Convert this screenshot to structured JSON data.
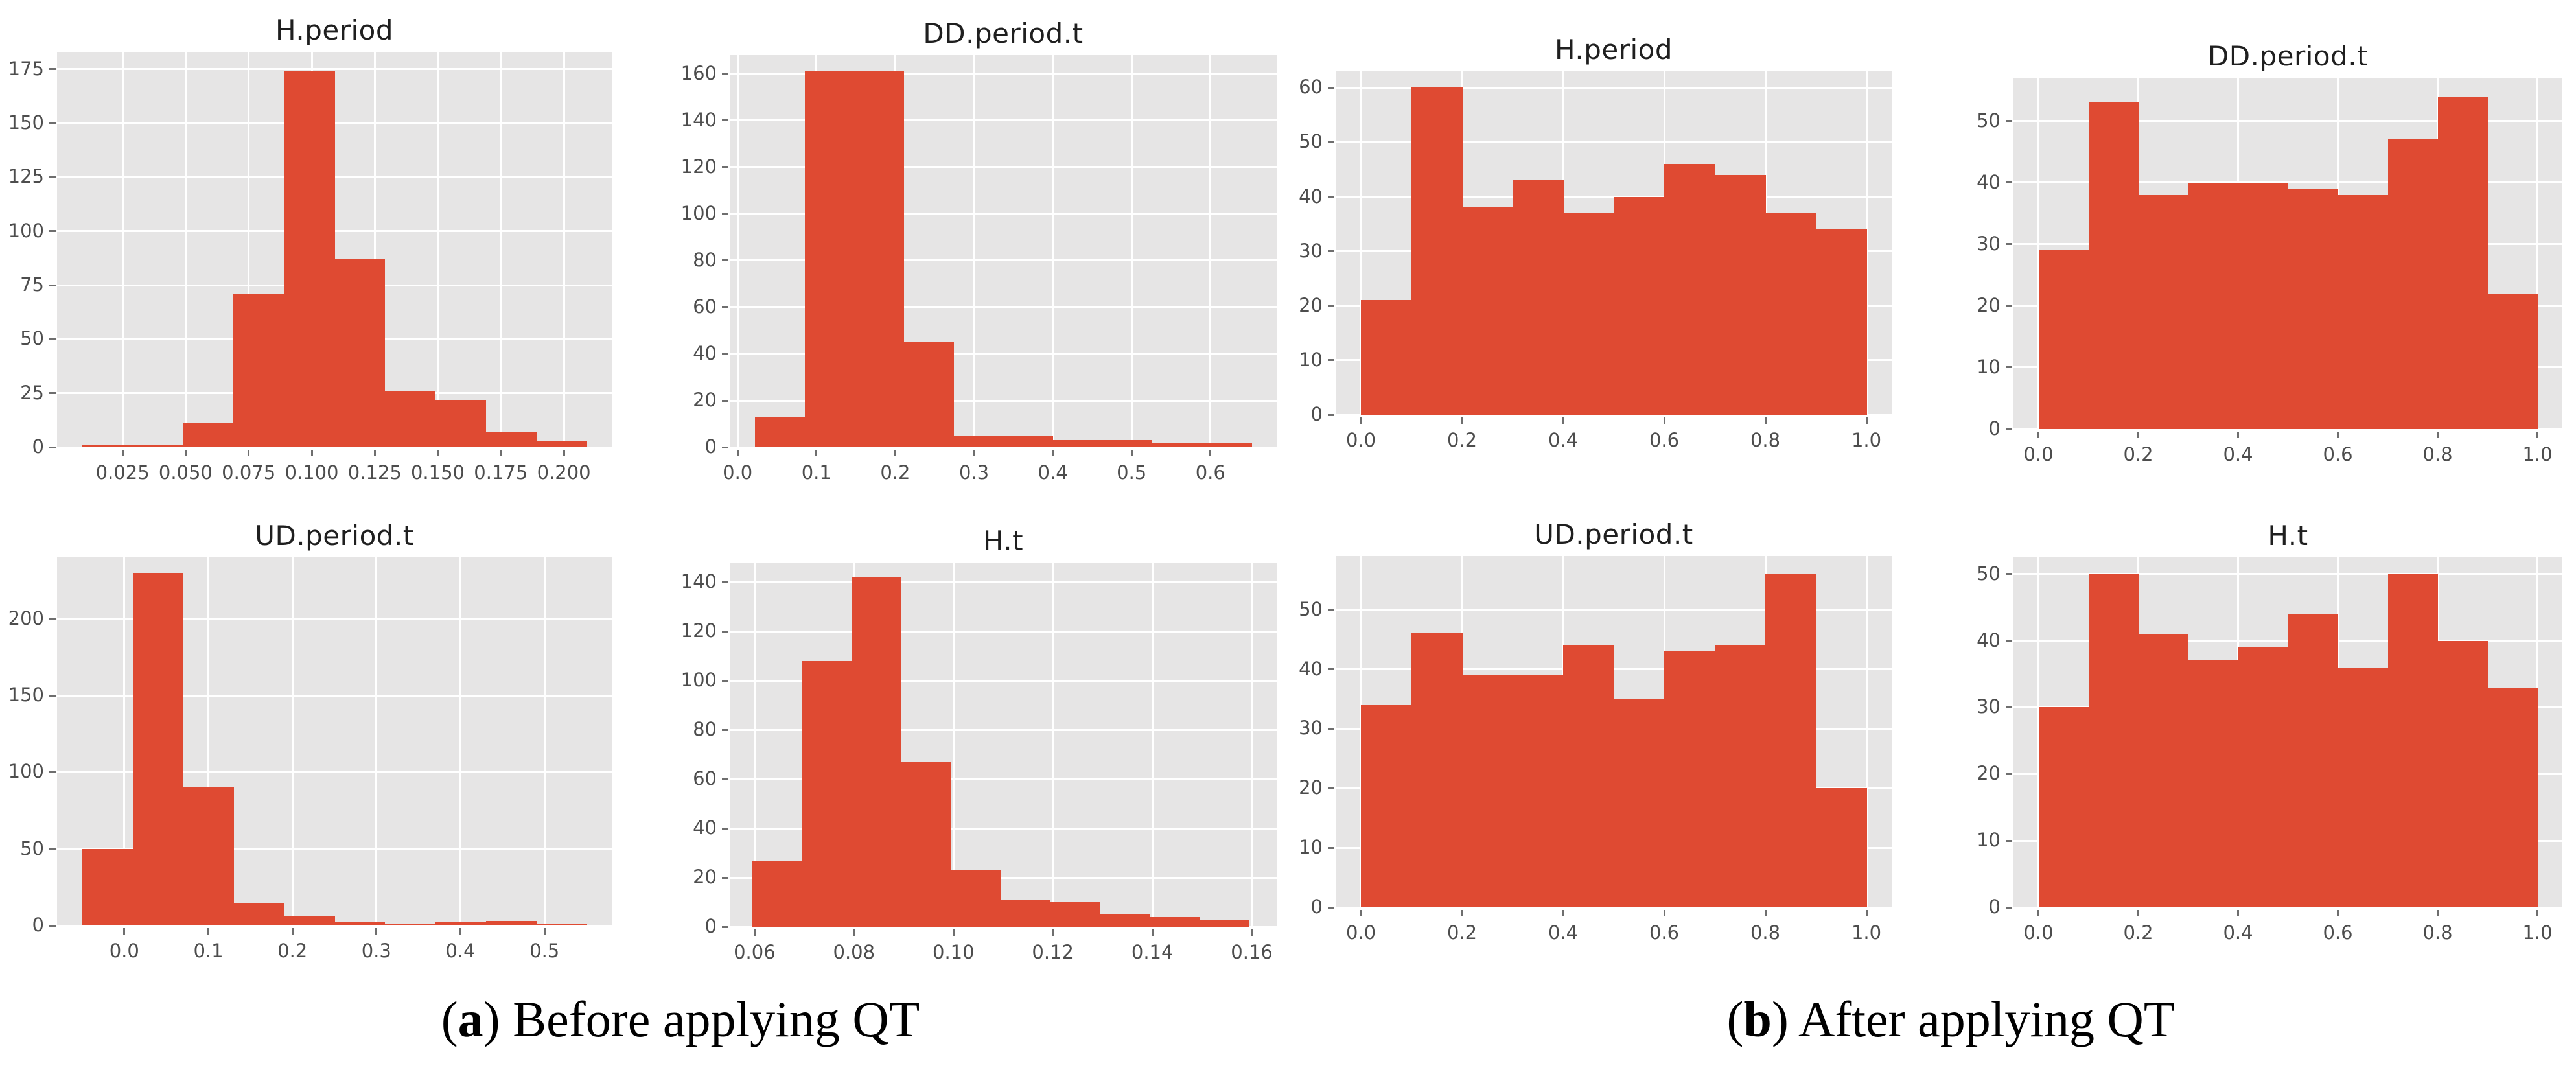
{
  "figure": {
    "bar_color": "#DF4A32",
    "plot_bg_color": "#E6E5E5",
    "grid_color": "#FFFFFF",
    "captions": {
      "a": {
        "open": "(",
        "letter": "a",
        "close": ") ",
        "text": "Before applying QT"
      },
      "b": {
        "open": "(",
        "letter": "b",
        "close": ") ",
        "text": "After applying QT"
      }
    }
  },
  "chart_data": [
    {
      "type": "histogram",
      "panel": "a",
      "title": "H.period",
      "bin_edges": [
        0.009,
        0.029,
        0.049,
        0.069,
        0.089,
        0.109,
        0.129,
        0.149,
        0.169,
        0.189,
        0.209
      ],
      "counts": [
        1,
        1,
        11,
        71,
        174,
        87,
        26,
        22,
        7,
        3
      ],
      "xlim": [
        -0.001,
        0.219
      ],
      "ylim": [
        0,
        183
      ],
      "x_tick_values": [
        0.025,
        0.05,
        0.075,
        0.1,
        0.125,
        0.15,
        0.175,
        0.2
      ],
      "x_tick_labels": [
        "0.025",
        "0.050",
        "0.075",
        "0.100",
        "0.125",
        "0.150",
        "0.175",
        "0.200"
      ],
      "y_tick_values": [
        0,
        25,
        50,
        75,
        100,
        125,
        150,
        175
      ],
      "y_tick_labels": [
        "0",
        "25",
        "50",
        "75",
        "100",
        "125",
        "150",
        "175"
      ]
    },
    {
      "type": "histogram",
      "panel": "a",
      "title": "DD.period.t",
      "bin_edges": [
        0.022,
        0.085,
        0.148,
        0.211,
        0.274,
        0.337,
        0.4,
        0.463,
        0.526,
        0.589,
        0.652
      ],
      "counts": [
        13,
        161,
        161,
        45,
        5,
        5,
        3,
        3,
        2,
        2
      ],
      "xlim": [
        -0.01,
        0.684
      ],
      "ylim": [
        0,
        168
      ],
      "x_tick_values": [
        0.0,
        0.1,
        0.2,
        0.3,
        0.4,
        0.5,
        0.6
      ],
      "x_tick_labels": [
        "0.0",
        "0.1",
        "0.2",
        "0.3",
        "0.4",
        "0.5",
        "0.6"
      ],
      "y_tick_values": [
        0,
        20,
        40,
        60,
        80,
        100,
        120,
        140,
        160
      ],
      "y_tick_labels": [
        "0",
        "20",
        "40",
        "60",
        "80",
        "100",
        "120",
        "140",
        "160"
      ]
    },
    {
      "type": "histogram",
      "panel": "b",
      "title": "H.period",
      "bin_edges": [
        0.0,
        0.1,
        0.2,
        0.3,
        0.4,
        0.5,
        0.6,
        0.7,
        0.8,
        0.9,
        1.0
      ],
      "counts": [
        21,
        60,
        38,
        43,
        37,
        40,
        46,
        44,
        37,
        34
      ],
      "xlim": [
        -0.05,
        1.05
      ],
      "ylim": [
        0,
        63
      ],
      "x_tick_values": [
        0.0,
        0.2,
        0.4,
        0.6,
        0.8,
        1.0
      ],
      "x_tick_labels": [
        "0.0",
        "0.2",
        "0.4",
        "0.6",
        "0.8",
        "1.0"
      ],
      "y_tick_values": [
        0,
        10,
        20,
        30,
        40,
        50,
        60
      ],
      "y_tick_labels": [
        "0",
        "10",
        "20",
        "30",
        "40",
        "50",
        "60"
      ]
    },
    {
      "type": "histogram",
      "panel": "b",
      "title": "DD.period.t",
      "bin_edges": [
        0.0,
        0.1,
        0.2,
        0.3,
        0.4,
        0.5,
        0.6,
        0.7,
        0.8,
        0.9,
        1.0
      ],
      "counts": [
        29,
        53,
        38,
        40,
        40,
        39,
        38,
        47,
        54,
        22
      ],
      "xlim": [
        -0.05,
        1.05
      ],
      "ylim": [
        0,
        57
      ],
      "x_tick_values": [
        0.0,
        0.2,
        0.4,
        0.6,
        0.8,
        1.0
      ],
      "x_tick_labels": [
        "0.0",
        "0.2",
        "0.4",
        "0.6",
        "0.8",
        "1.0"
      ],
      "y_tick_values": [
        0,
        10,
        20,
        30,
        40,
        50
      ],
      "y_tick_labels": [
        "0",
        "10",
        "20",
        "30",
        "40",
        "50"
      ]
    },
    {
      "type": "histogram",
      "panel": "a",
      "title": "UD.period.t",
      "bin_edges": [
        -0.05,
        0.01,
        0.07,
        0.13,
        0.19,
        0.25,
        0.31,
        0.37,
        0.43,
        0.49,
        0.55
      ],
      "counts": [
        50,
        230,
        90,
        15,
        6,
        2,
        1,
        2,
        3,
        1
      ],
      "xlim": [
        -0.08,
        0.58
      ],
      "ylim": [
        0,
        240
      ],
      "x_tick_values": [
        0.0,
        0.1,
        0.2,
        0.3,
        0.4,
        0.5
      ],
      "x_tick_labels": [
        "0.0",
        "0.1",
        "0.2",
        "0.3",
        "0.4",
        "0.5"
      ],
      "y_tick_values": [
        0,
        50,
        100,
        150,
        200
      ],
      "y_tick_labels": [
        "0",
        "50",
        "100",
        "150",
        "200"
      ]
    },
    {
      "type": "histogram",
      "panel": "a",
      "title": "H.t",
      "bin_edges": [
        0.0595,
        0.0695,
        0.0795,
        0.0895,
        0.0995,
        0.1095,
        0.1195,
        0.1295,
        0.1395,
        0.1495,
        0.1595
      ],
      "counts": [
        27,
        108,
        142,
        67,
        23,
        11,
        10,
        5,
        4,
        3
      ],
      "xlim": [
        0.055,
        0.165
      ],
      "ylim": [
        0,
        148
      ],
      "x_tick_values": [
        0.06,
        0.08,
        0.1,
        0.12,
        0.14,
        0.16
      ],
      "x_tick_labels": [
        "0.06",
        "0.08",
        "0.10",
        "0.12",
        "0.14",
        "0.16"
      ],
      "y_tick_values": [
        0,
        20,
        40,
        60,
        80,
        100,
        120,
        140
      ],
      "y_tick_labels": [
        "0",
        "20",
        "40",
        "60",
        "80",
        "100",
        "120",
        "140"
      ]
    },
    {
      "type": "histogram",
      "panel": "b",
      "title": "UD.period.t",
      "bin_edges": [
        0.0,
        0.1,
        0.2,
        0.3,
        0.4,
        0.5,
        0.6,
        0.7,
        0.8,
        0.9,
        1.0
      ],
      "counts": [
        34,
        46,
        39,
        39,
        44,
        35,
        43,
        44,
        56,
        20
      ],
      "xlim": [
        -0.05,
        1.05
      ],
      "ylim": [
        0,
        59
      ],
      "x_tick_values": [
        0.0,
        0.2,
        0.4,
        0.6,
        0.8,
        1.0
      ],
      "x_tick_labels": [
        "0.0",
        "0.2",
        "0.4",
        "0.6",
        "0.8",
        "1.0"
      ],
      "y_tick_values": [
        0,
        10,
        20,
        30,
        40,
        50
      ],
      "y_tick_labels": [
        "0",
        "10",
        "20",
        "30",
        "40",
        "50"
      ]
    },
    {
      "type": "histogram",
      "panel": "b",
      "title": "H.t",
      "bin_edges": [
        0.0,
        0.1,
        0.2,
        0.3,
        0.4,
        0.5,
        0.6,
        0.7,
        0.8,
        0.9,
        1.0
      ],
      "counts": [
        30,
        50,
        41,
        37,
        39,
        44,
        36,
        50,
        40,
        33
      ],
      "xlim": [
        -0.05,
        1.05
      ],
      "ylim": [
        0,
        52.5
      ],
      "x_tick_values": [
        0.0,
        0.2,
        0.4,
        0.6,
        0.8,
        1.0
      ],
      "x_tick_labels": [
        "0.0",
        "0.2",
        "0.4",
        "0.6",
        "0.8",
        "1.0"
      ],
      "y_tick_values": [
        0,
        10,
        20,
        30,
        40,
        50
      ],
      "y_tick_labels": [
        "0",
        "10",
        "20",
        "30",
        "40",
        "50"
      ]
    }
  ]
}
